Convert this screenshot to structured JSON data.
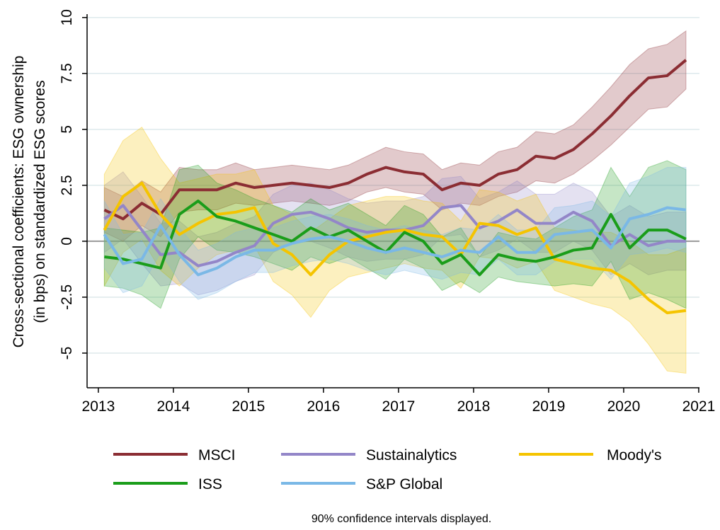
{
  "chart_data": {
    "type": "line",
    "ylabel": [
      "Cross-sectional coefficients: ESG ownership",
      "(in bps) on standardized ESG scores"
    ],
    "note": "90% confidence intervals displayed.",
    "xlim": [
      2012.85,
      2021.01
    ],
    "xticks": [
      2013,
      2014,
      2015,
      2016,
      2017,
      2018,
      2019,
      2020,
      2021
    ],
    "ylim": [
      -6.55,
      10.15
    ],
    "yticks": [
      10,
      7.5,
      5,
      2.5,
      0,
      -2.5,
      -5
    ],
    "grid": true,
    "x": [
      2013.08,
      2013.33,
      2013.58,
      2013.83,
      2014.08,
      2014.33,
      2014.58,
      2014.83,
      2015.08,
      2015.33,
      2015.58,
      2015.83,
      2016.08,
      2016.33,
      2016.58,
      2016.83,
      2017.08,
      2017.33,
      2017.58,
      2017.83,
      2018.08,
      2018.33,
      2018.58,
      2018.83,
      2019.08,
      2019.33,
      2019.58,
      2019.83,
      2020.08,
      2020.33,
      2020.58,
      2020.83
    ],
    "series": [
      {
        "name": "MSCI",
        "color": "#8b2d33",
        "values": [
          1.4,
          1.0,
          1.7,
          1.2,
          2.3,
          2.3,
          2.3,
          2.6,
          2.4,
          2.5,
          2.6,
          2.5,
          2.4,
          2.6,
          3.0,
          3.3,
          3.1,
          3.0,
          2.3,
          2.6,
          2.5,
          3.0,
          3.2,
          3.8,
          3.7,
          4.1,
          4.8,
          5.6,
          6.5,
          7.3,
          7.4,
          8.1
        ],
        "lower": [
          0.4,
          0.0,
          0.7,
          0.2,
          1.3,
          1.4,
          1.4,
          1.7,
          1.6,
          1.7,
          1.8,
          1.7,
          1.6,
          1.8,
          2.2,
          2.4,
          2.2,
          2.1,
          1.4,
          1.7,
          1.6,
          2.0,
          2.2,
          2.7,
          2.6,
          3.0,
          3.6,
          4.3,
          5.1,
          5.9,
          6.0,
          6.8
        ],
        "upper": [
          2.4,
          2.0,
          2.7,
          2.2,
          3.3,
          3.2,
          3.2,
          3.5,
          3.2,
          3.3,
          3.4,
          3.3,
          3.2,
          3.4,
          3.8,
          4.2,
          4.0,
          3.9,
          3.2,
          3.5,
          3.4,
          4.0,
          4.2,
          4.9,
          4.8,
          5.2,
          6.0,
          6.9,
          7.9,
          8.6,
          8.8,
          9.4
        ]
      },
      {
        "name": "Sustainalytics",
        "color": "#9386c8",
        "values": [
          1.0,
          1.6,
          0.5,
          -0.6,
          -0.5,
          -1.1,
          -0.9,
          -0.5,
          -0.2,
          0.8,
          1.2,
          1.3,
          1.0,
          0.6,
          0.4,
          0.5,
          0.5,
          0.7,
          1.5,
          1.6,
          0.6,
          0.9,
          1.4,
          0.8,
          0.8,
          1.3,
          0.9,
          -0.2,
          0.3,
          -0.2,
          0.0,
          0.0
        ],
        "lower": [
          -0.5,
          0.1,
          -1.0,
          -2.0,
          -1.9,
          -2.4,
          -2.2,
          -1.8,
          -1.5,
          -0.5,
          -0.1,
          0.0,
          -0.3,
          -0.7,
          -0.9,
          -0.8,
          -0.8,
          -0.6,
          0.2,
          0.3,
          -0.7,
          -0.4,
          0.1,
          -0.5,
          -0.5,
          0.0,
          -0.4,
          -1.5,
          -1.0,
          -1.5,
          -1.3,
          -1.3
        ],
        "upper": [
          2.5,
          3.1,
          2.0,
          0.8,
          0.9,
          0.2,
          0.4,
          0.8,
          1.1,
          2.1,
          2.5,
          2.6,
          2.3,
          1.9,
          1.7,
          1.8,
          1.8,
          2.0,
          2.8,
          2.9,
          1.9,
          2.2,
          2.7,
          2.1,
          2.1,
          2.6,
          2.2,
          1.1,
          1.6,
          1.1,
          1.3,
          1.3
        ]
      },
      {
        "name": "Moody's",
        "color": "#f5c400",
        "values": [
          0.5,
          2.0,
          2.6,
          1.2,
          0.3,
          0.8,
          1.2,
          1.3,
          1.5,
          -0.1,
          -0.6,
          -1.5,
          -0.6,
          0.0,
          0.2,
          0.4,
          0.5,
          0.3,
          0.2,
          -0.6,
          0.8,
          0.7,
          0.3,
          0.6,
          -0.8,
          -1.0,
          -1.2,
          -1.3,
          -1.8,
          -2.6,
          -3.2,
          -3.1
        ],
        "lower": [
          -2.0,
          -0.5,
          0.1,
          -1.3,
          -2.0,
          -1.2,
          -0.6,
          -0.4,
          -0.2,
          -1.8,
          -2.4,
          -3.4,
          -2.2,
          -1.6,
          -1.4,
          -1.2,
          -1.0,
          -1.2,
          -1.3,
          -2.1,
          -0.7,
          -0.8,
          -1.2,
          -0.9,
          -2.2,
          -2.5,
          -2.8,
          -3.0,
          -3.6,
          -4.6,
          -5.8,
          -5.9
        ],
        "upper": [
          3.0,
          4.5,
          5.1,
          3.7,
          2.6,
          2.8,
          3.0,
          3.0,
          3.2,
          1.6,
          1.2,
          0.4,
          1.0,
          1.6,
          1.8,
          2.0,
          2.0,
          1.8,
          1.7,
          0.9,
          2.3,
          2.2,
          1.8,
          2.1,
          0.6,
          0.5,
          0.4,
          0.4,
          0.0,
          -0.6,
          -0.6,
          -0.3
        ]
      },
      {
        "name": "ISS",
        "color": "#1a9d1a",
        "values": [
          -0.7,
          -0.8,
          -1.0,
          -1.2,
          1.2,
          1.8,
          1.1,
          0.9,
          0.6,
          0.3,
          0.0,
          0.6,
          0.2,
          0.5,
          0.0,
          -0.5,
          0.4,
          0.0,
          -1.0,
          -0.6,
          -1.5,
          -0.6,
          -0.8,
          -0.9,
          -0.7,
          -0.4,
          -0.3,
          1.2,
          -0.3,
          0.5,
          0.5,
          0.1
        ],
        "lower": [
          -2.0,
          -2.1,
          -2.4,
          -3.0,
          -0.8,
          0.2,
          -0.4,
          -0.5,
          -0.7,
          -1.0,
          -1.3,
          -0.7,
          -1.0,
          -0.7,
          -1.2,
          -1.7,
          -0.8,
          -1.2,
          -2.2,
          -1.8,
          -2.3,
          -1.6,
          -1.8,
          -1.9,
          -2.0,
          -1.9,
          -2.0,
          -0.9,
          -2.6,
          -2.3,
          -2.6,
          -3.0
        ],
        "upper": [
          0.6,
          0.5,
          0.4,
          0.6,
          3.2,
          3.4,
          2.6,
          2.3,
          1.9,
          1.6,
          1.3,
          1.9,
          1.4,
          1.7,
          1.2,
          0.7,
          1.6,
          1.2,
          0.2,
          0.6,
          -0.7,
          0.4,
          0.2,
          0.1,
          0.6,
          1.1,
          1.4,
          3.3,
          2.0,
          3.3,
          3.6,
          3.2
        ]
      },
      {
        "name": "S&P Global",
        "color": "#7ab8e6",
        "values": [
          0.3,
          -1.0,
          -0.8,
          0.7,
          -0.6,
          -1.5,
          -1.2,
          -0.7,
          -0.4,
          -0.4,
          -0.1,
          0.1,
          0.2,
          0.0,
          -0.3,
          -0.5,
          -0.3,
          -0.5,
          -0.7,
          -0.4,
          -0.5,
          0.2,
          -0.5,
          -0.5,
          0.3,
          0.4,
          0.5,
          -0.3,
          1.0,
          1.2,
          1.5,
          1.4
        ],
        "lower": [
          -1.2,
          -2.3,
          -2.0,
          -0.5,
          -1.8,
          -2.6,
          -2.3,
          -1.8,
          -1.4,
          -1.4,
          -1.1,
          -0.9,
          -0.8,
          -1.0,
          -1.3,
          -1.5,
          -1.3,
          -1.5,
          -1.7,
          -1.4,
          -1.5,
          -0.8,
          -1.5,
          -1.5,
          -0.9,
          -0.8,
          -0.8,
          -1.7,
          -0.6,
          -0.5,
          -0.3,
          -0.5
        ],
        "upper": [
          1.8,
          0.3,
          0.4,
          1.9,
          0.6,
          -0.4,
          -0.1,
          0.4,
          0.6,
          0.6,
          0.9,
          1.1,
          1.2,
          1.0,
          0.7,
          0.5,
          0.7,
          0.5,
          0.3,
          0.6,
          0.5,
          1.2,
          0.5,
          0.5,
          1.5,
          1.6,
          1.8,
          1.1,
          2.6,
          2.9,
          3.3,
          3.3
        ]
      }
    ]
  }
}
